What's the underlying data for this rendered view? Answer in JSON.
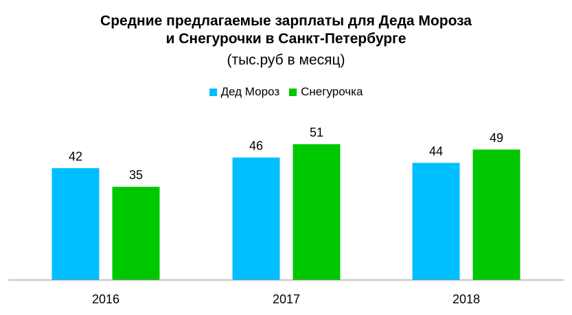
{
  "title_line1": "Средние предлагаемые зарплаты для Деда Мороза",
  "title_line2": "и Снегурочки в Санкт-Петербурге",
  "subtitle": "(тыс.руб в месяц)",
  "chart_data": {
    "type": "bar",
    "categories": [
      "2016",
      "2017",
      "2018"
    ],
    "series": [
      {
        "name": "Дед Мороз",
        "values": [
          42,
          46,
          44
        ],
        "color": "#00BFFF"
      },
      {
        "name": "Снегурочка",
        "values": [
          35,
          51,
          49
        ],
        "color": "#00C800"
      }
    ],
    "ylim": [
      0,
      60
    ],
    "grid": false,
    "legend_position": "top-center",
    "data_labels": true
  }
}
